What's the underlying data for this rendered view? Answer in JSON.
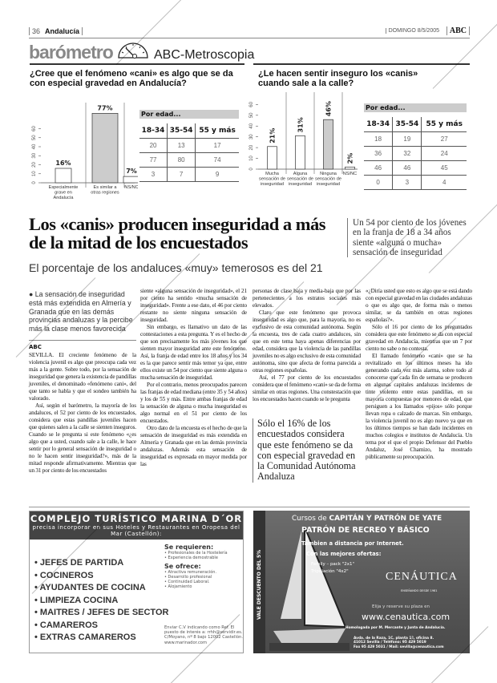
{
  "header": {
    "page_number": "36",
    "section": "Andalucía",
    "date": "DOMINGO 8/5/2005",
    "logo": "ABC"
  },
  "barometer": {
    "title": "barómetro",
    "icon": "gauge-icon",
    "brand": "ABC-Metroscopia"
  },
  "chart_data": [
    {
      "type": "bar",
      "title": "¿Cree que el fenómeno «cani» es algo que se da con especial gravedad en Andalucía?",
      "categories": [
        "Especialmente grave en Andalucía",
        "Es similar a otras regiones",
        "NS/NC"
      ],
      "values": [
        16,
        77,
        7
      ],
      "data_labels": [
        "16%",
        "77%",
        "7%"
      ],
      "highlight_index": 1,
      "yticks": [
        0,
        10,
        20,
        30,
        40,
        50,
        60
      ],
      "ylim": [
        0,
        80
      ],
      "colors": {
        "bar": "#ffffff",
        "highlight": "#cccccc",
        "stroke": "#333333"
      },
      "table": {
        "title": "Por edad...",
        "headers": [
          "18-34",
          "35-54",
          "55 y más"
        ],
        "rows": [
          [
            "20",
            "13",
            "17"
          ],
          [
            "77",
            "80",
            "74"
          ],
          [
            "3",
            "7",
            "9"
          ]
        ]
      }
    },
    {
      "type": "bar",
      "title": "¿Le hacen sentir inseguro los «canis» cuando sale a la calle?",
      "categories": [
        "Mucha sensación de inseguridad",
        "Alguna sensación de inseguridad",
        "Ninguna sensación de inseguridad",
        "NS/NC"
      ],
      "values": [
        21,
        31,
        46,
        2
      ],
      "data_labels": [
        "21%",
        "31%",
        "46%",
        "2%"
      ],
      "highlight_index": 2,
      "yticks": [
        0,
        10,
        20,
        30,
        40,
        50,
        60
      ],
      "ylim": [
        0,
        64
      ],
      "colors": {
        "bar": "#ffffff",
        "highlight": "#cccccc",
        "stroke": "#333333"
      },
      "table": {
        "title": "Por edad...",
        "headers": [
          "18-34",
          "35-54",
          "55 y más"
        ],
        "rows": [
          [
            "18",
            "19",
            "27"
          ],
          [
            "36",
            "32",
            "24"
          ],
          [
            "46",
            "46",
            "45"
          ],
          [
            "0",
            "3",
            "4"
          ]
        ]
      }
    }
  ],
  "article": {
    "headline": "Los «canis» producen inseguridad a más de la mitad de los encuestados",
    "subheadline": "El porcentaje de los andaluces «muy»  temerosos es del 21",
    "side_quote": "Un 54 por ciento de los jóvenes en la franja de 18 a 34 años  siente «alguna o mucha» sensación de inseguridad",
    "lede": "La sensación de inseguridad está más extendida en Almería y Granada que en las demás provincias andaluzas y la percibe más la clase menos favorecida",
    "byline": "ABC",
    "pull_quote": "Sólo el 16% de los encuestados considera que este fenómeno se da con especial gravedad en la Comunidad Autónoma Andaluza",
    "col1": [
      "SEVILLA. El creciente fenómeno de la violencia juvenil es algo que preocupa cada vez más a la gente. Sobre todo, por la sensación de inseguridad que genera la existencia de pandillas juveniles, el denominado «fenómeno cani», del que tanto se habla y que el sondeo también ha valorado.",
      "Así, según el barómetro, la mayoría de los andaluces, el 52 por ciento de los encuestados, considera que estas pandillas juveniles hacen que quienes salen a la calle se sienten inseguros. Cuando se le pregunta si este fenómeno «¿es algo que a usted, cuando sale a la calle, le hace sentir por lo general sensación de inseguridad o no le hacen sentir inseguridad?», más de la mitad responde afirmativamente. Mientras que un 31 por ciento de los encuestados"
    ],
    "col2": [
      "siente «alguna sensación de inseguridad», el 21 por ciento ha sentido «mucha sensación de inseguridad». Frente a ese dato, el 46 por ciento restante no siente ninguna sensación de inseguridad.",
      "Sin embargo, es llamativo un dato de las contestaciones a esta pregunta. Y es el hecho de que son precisamente los más jóvenes los que sienten mayor inseguridad ante este fenómeno. Así, la franja de edad entre los 18 años y los 34 es la que parece sentir más temor ya que, entre ellos existe un 54 por ciento que siente alguna o mucha sensación de inseguridad.",
      "Por el contrario, menos preocupados parecen las franjas de edad mediana (entre 35 y 54 años) y los de 55 y más. Entre ambas franjas de edad la sensación de alguna o mucha inseguridad es algo normal en el 51 por ciento de los encuestados.",
      "Otro dato de la encuesta es el hecho de que la sensación de inseguridad es más extendida en Almería y Granada que en las demás provincia andaluzas. Además esta sensación de inseguridad es expresada en mayor medida por las"
    ],
    "col3": [
      "personas de clase baja y media-baja que por las pertenecientes a los estratos sociales más elevados.",
      "Claro que este fenómeno que provoca inseguridad es algo que, para la mayoría, no es exclusivo de esta comunidad autónoma. Según la encuesta, tres de cada cuatro andaluces, sin que en este tema haya apenas diferencias por edad, considera que la violencia de las pandillas juveniles no es algo exclusivo de esta comunidad autónoma, sino que afecta de forma parecida a otras regiones españolas.",
      "Así, el 77 por ciento de los encuestados considera que el fenómeno «cani» se da de forma similar en otras regiones. Una constestación que los encuestados hacen cuando se le pregunta"
    ],
    "col4": [
      "«¿Diría usted que esto es algo que se está dando con especial gravedad en las ciudades andaluzas o que es algo que, de forma más o menos similar, se da también en otras regiones españolas?».",
      "Sólo el 16 por ciento de los preguntados considera que este fenómeno se da con especial gravedad en Andalucía, mientras que un 7 por ciento no sabe o no contesta.",
      "El llamado fenómeno «cani» que se ha revitalizado en los últimos meses ha ido generando cada vez más alarma, sobre todo al conocerse que cada fin de semana se producen en algunas capitales andaluzas incidentes de tinte violento entre estas pandillas, en su mayoría compuestas por menores de edad, que persiguen a los llamados «pijos» sólo porque llevan ropa o calzado de marcas. Sin embargo, la violencia juvenil no es algo nuevo ya que en los últimos tiempos se han dado incidentes en muchos colegios e institutos de Andalucía. Un tema por el que el propio Defensor del Pueblo Andaluz, José Chamizo, ha mostrado públicamente su preocupación."
    ]
  },
  "ad_marina": {
    "title": "COMPLEJO TURÍSTICO MARINA D´OR",
    "subtitle": "precisa incorporar en sus Hoteles y Restaurantes en Oropesa del Mar (Castellón):",
    "jobs": [
      "• JEFES DE PARTIDA",
      "• COCINEROS",
      "• AYUDANTES DE COCINA",
      "• LIMPIEZA COCINA",
      "• MAITRES / JEFES DE SECTOR",
      "• CAMAREROS",
      "• EXTRAS CAMAREROS"
    ],
    "requirements_title": "Se requieren:",
    "requirements": [
      "• Profesionales de  la Hostelería",
      "• Experiencia demostrable"
    ],
    "offer_title": "Se ofrece:",
    "offer": [
      "• Atractiva remuneración.",
      "• Desarrollo profesional",
      "• Continuidad Laboral.",
      "• Alojamiento"
    ],
    "contact": "Enviar C.V indicando como Ref. El puesto de interés a: rrhh@servidir.es. C/Moyano, nº 8 bajo 12002 Castellón. www.marinador.com"
  },
  "ad_cenautica": {
    "stripe": "VALE DESCUENTO DEL 5%",
    "line1_prefix": "Cursos de",
    "line1_bold": "CAPITÁN Y PATRÓN DE YATE",
    "line2": "PATRÓN DE RECREO Y BÁSICO",
    "line3": "Tambien a distancia por Internet.",
    "line4": "Con las mejores ofertas:",
    "offers": [
      "Family – pack \"2x1\"",
      "Tripulación \"4x2\""
    ],
    "brand": "CENÁUTICA",
    "since": "ENSEÑANDO DESDE 1981",
    "cta": "Elija y reserve su plaza en",
    "url": "www.cenautica.com",
    "homologation": "Homologada por M. Mercante y Junta de Andalucía.",
    "address": [
      "Avda. de la Raza, 1C, planta 1ª, oficina 8.",
      "41012 Sevilla / Teléfono: 95 429 5019",
      "Fax 95 429 5031 / Mail: sevilla@cenautica.com"
    ]
  },
  "watermark": "ABC"
}
